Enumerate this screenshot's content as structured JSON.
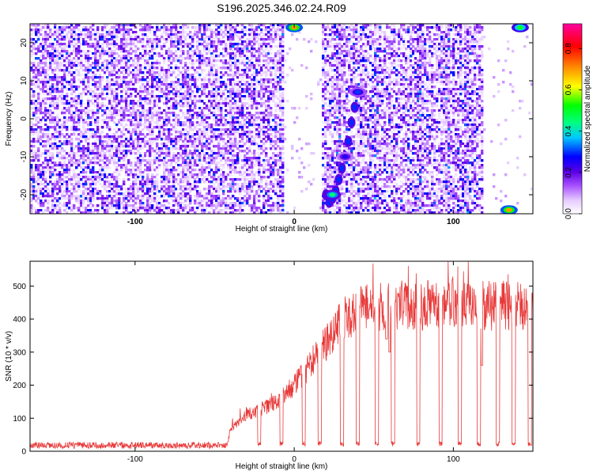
{
  "title": "S196.2025.346.02.24.R09",
  "chart_data": [
    {
      "type": "heatmap",
      "xlabel": "Height of straight line (km)",
      "ylabel": "Frequency (Hz)",
      "xlim": [
        -166,
        150
      ],
      "ylim": [
        -25,
        25
      ],
      "xticks": [
        -100,
        0,
        100
      ],
      "yticks": [
        -20,
        -10,
        0,
        10,
        20
      ],
      "colorbar": {
        "label": "Normalized spectral amplitude",
        "ticks": [
          0.0,
          0.2,
          0.4,
          0.6,
          0.8
        ],
        "range": [
          0,
          0.92
        ],
        "colors": [
          "#ffffff",
          "#e6ccff",
          "#a64dff",
          "#5a00e6",
          "#0000ff",
          "#00c8ff",
          "#00ff80",
          "#00ff00",
          "#ffff00",
          "#ff8000",
          "#ff0000",
          "#ff00a0"
        ]
      },
      "blank_bands_km": [
        [
          -6,
          18
        ],
        [
          118,
          150
        ]
      ],
      "hot_spots": [
        {
          "x": 0,
          "y": 24,
          "value": 0.7
        },
        {
          "x": 24,
          "y": -20,
          "value": 0.45
        },
        {
          "x": 40,
          "y": 7,
          "value": 0.3
        },
        {
          "x": 32,
          "y": -10,
          "value": 0.25
        },
        {
          "x": 135,
          "y": -24,
          "value": 0.7
        },
        {
          "x": 142,
          "y": 24,
          "value": 0.5
        }
      ]
    },
    {
      "type": "line",
      "xlabel": "Height of straight line (km)",
      "ylabel": "SNR (10 * v/v)",
      "xlim": [
        -166,
        150
      ],
      "ylim": [
        0,
        575
      ],
      "xticks": [
        -100,
        0,
        100
      ],
      "yticks": [
        0,
        100,
        200,
        300,
        400,
        500
      ],
      "color": "#e83a3a",
      "baseline": {
        "x_range": [
          -166,
          -42
        ],
        "level": 18,
        "noise": 10
      },
      "trend": [
        [
          -42,
          20
        ],
        [
          -40,
          70
        ],
        [
          -30,
          110
        ],
        [
          -20,
          130
        ],
        [
          -10,
          150
        ],
        [
          0,
          200
        ],
        [
          10,
          260
        ],
        [
          20,
          330
        ],
        [
          30,
          400
        ],
        [
          40,
          430
        ],
        [
          60,
          440
        ],
        [
          80,
          440
        ],
        [
          100,
          450
        ],
        [
          120,
          440
        ],
        [
          150,
          440
        ]
      ],
      "dropouts_km": [
        -22,
        -8,
        6,
        16,
        30,
        40,
        52,
        62,
        78,
        92,
        104,
        116,
        128,
        138,
        148
      ],
      "dips": [
        {
          "x": 58,
          "y": 340
        },
        {
          "x": 60,
          "y": 300
        },
        {
          "x": 118,
          "y": 260
        }
      ]
    }
  ]
}
